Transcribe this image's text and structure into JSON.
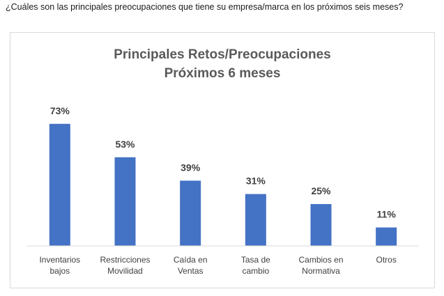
{
  "question": "¿Cuáles son las principales preocupaciones que tiene su empresa/marca en los próximos seis meses?",
  "chart_data": {
    "type": "bar",
    "title": [
      "Principales Retos/Preocupaciones",
      "Próximos 6 meses"
    ],
    "categories": [
      [
        "Inventarios",
        "bajos"
      ],
      [
        "Restricciones",
        "Movilidad"
      ],
      [
        "Caída en",
        "Ventas"
      ],
      [
        "Tasa de",
        "cambio"
      ],
      [
        "Cambios en",
        "Normativa"
      ],
      [
        "Otros"
      ]
    ],
    "values": [
      73,
      53,
      39,
      31,
      25,
      11
    ],
    "data_labels": [
      "73%",
      "53%",
      "39%",
      "31%",
      "25%",
      "11%"
    ],
    "ylim": [
      0,
      80
    ],
    "grid": false,
    "legend": "none",
    "bar_color": "#4472C4",
    "axis_color": "#d9d9d9"
  }
}
